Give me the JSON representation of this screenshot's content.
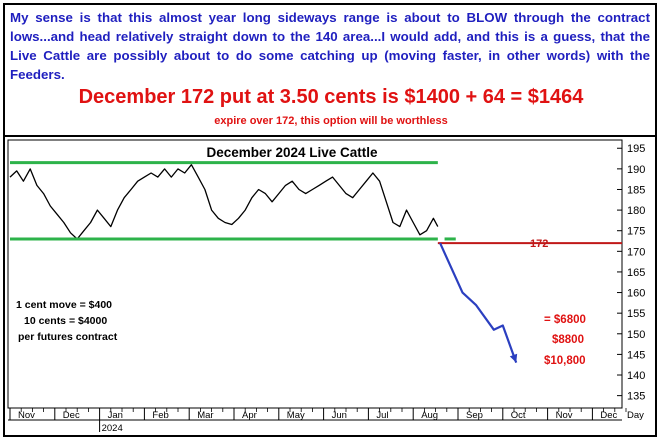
{
  "commentary": "My sense is that this almost year long sideways range is about to BLOW through the contract lows...and head relatively straight down to the 140 area...I would add, and this is a guess, that the Live Cattle are possibly about to do some catching up (moving faster, in other words) with the Feeders.",
  "headline": "December 172 put at 3.50 cents is $1400 + 64 = $1464",
  "subline": "expire over 172, this option will be worthless",
  "colors": {
    "price": "#000000",
    "range_lines": "#2db34a",
    "strike_line": "#c01818",
    "projection": "#2b3fc0",
    "text_blue": "#1f1fbf",
    "text_red": "#e01212"
  },
  "chart_data": {
    "type": "line",
    "title": "December 2024 Live Cattle",
    "y_axis": {
      "ticks": [
        135,
        140,
        145,
        150,
        155,
        160,
        165,
        170,
        175,
        180,
        185,
        190,
        195
      ],
      "range": [
        132,
        197
      ],
      "side": "right"
    },
    "x_axis": {
      "months": [
        "Nov",
        "Dec",
        "Jan",
        "Feb",
        "Mar",
        "Apr",
        "May",
        "Jun",
        "Jul",
        "Aug",
        "Sep",
        "Oct",
        "Nov",
        "Dec"
      ],
      "year_label": "2024",
      "year_label_under": "Jan",
      "unit_label": "Day"
    },
    "price_series": [
      [
        0,
        188
      ],
      [
        0.15,
        189.5
      ],
      [
        0.3,
        187
      ],
      [
        0.45,
        190
      ],
      [
        0.6,
        186
      ],
      [
        0.75,
        184
      ],
      [
        0.9,
        181
      ],
      [
        1.05,
        179
      ],
      [
        1.2,
        177
      ],
      [
        1.35,
        174.5
      ],
      [
        1.5,
        173
      ],
      [
        1.65,
        175
      ],
      [
        1.8,
        177
      ],
      [
        1.95,
        180
      ],
      [
        2.1,
        178
      ],
      [
        2.25,
        176
      ],
      [
        2.4,
        180
      ],
      [
        2.55,
        183
      ],
      [
        2.7,
        185
      ],
      [
        2.85,
        187
      ],
      [
        3.0,
        188
      ],
      [
        3.15,
        189
      ],
      [
        3.3,
        188
      ],
      [
        3.45,
        190
      ],
      [
        3.6,
        188
      ],
      [
        3.75,
        190
      ],
      [
        3.9,
        189
      ],
      [
        4.05,
        191
      ],
      [
        4.2,
        188
      ],
      [
        4.35,
        185
      ],
      [
        4.5,
        180
      ],
      [
        4.65,
        178
      ],
      [
        4.8,
        177
      ],
      [
        4.95,
        176.5
      ],
      [
        5.1,
        178
      ],
      [
        5.25,
        180
      ],
      [
        5.4,
        183
      ],
      [
        5.55,
        185
      ],
      [
        5.7,
        184
      ],
      [
        5.85,
        182
      ],
      [
        6.0,
        184
      ],
      [
        6.15,
        186
      ],
      [
        6.3,
        187
      ],
      [
        6.45,
        185
      ],
      [
        6.6,
        184
      ],
      [
        6.75,
        185
      ],
      [
        6.9,
        186
      ],
      [
        7.05,
        187
      ],
      [
        7.2,
        188
      ],
      [
        7.35,
        186
      ],
      [
        7.5,
        184
      ],
      [
        7.65,
        183
      ],
      [
        7.8,
        185
      ],
      [
        7.95,
        187
      ],
      [
        8.1,
        189
      ],
      [
        8.25,
        187
      ],
      [
        8.4,
        182
      ],
      [
        8.55,
        177
      ],
      [
        8.7,
        176
      ],
      [
        8.85,
        180
      ],
      [
        9.0,
        177
      ],
      [
        9.15,
        174
      ],
      [
        9.3,
        175
      ],
      [
        9.45,
        178
      ],
      [
        9.55,
        176
      ]
    ],
    "range_top": {
      "value": 191.5,
      "x": [
        0,
        9.55
      ]
    },
    "range_bottom": {
      "value": 173,
      "x": [
        0,
        9.55
      ]
    },
    "range_bottom_extension": {
      "value": 173,
      "x": [
        9.7,
        9.95
      ]
    },
    "strike_line": {
      "value": 172,
      "label": "172",
      "x": [
        9.55,
        14
      ]
    },
    "projection_path": [
      [
        9.6,
        172
      ],
      [
        10.1,
        160
      ],
      [
        10.4,
        157
      ],
      [
        10.8,
        151
      ],
      [
        11.0,
        152
      ],
      [
        11.3,
        143
      ]
    ],
    "notes": [
      "1 cent move = $400",
      "10 cents = $4000",
      "per futures contract"
    ],
    "loss_labels": [
      "= $6800",
      "$8800",
      "$10,800"
    ]
  }
}
